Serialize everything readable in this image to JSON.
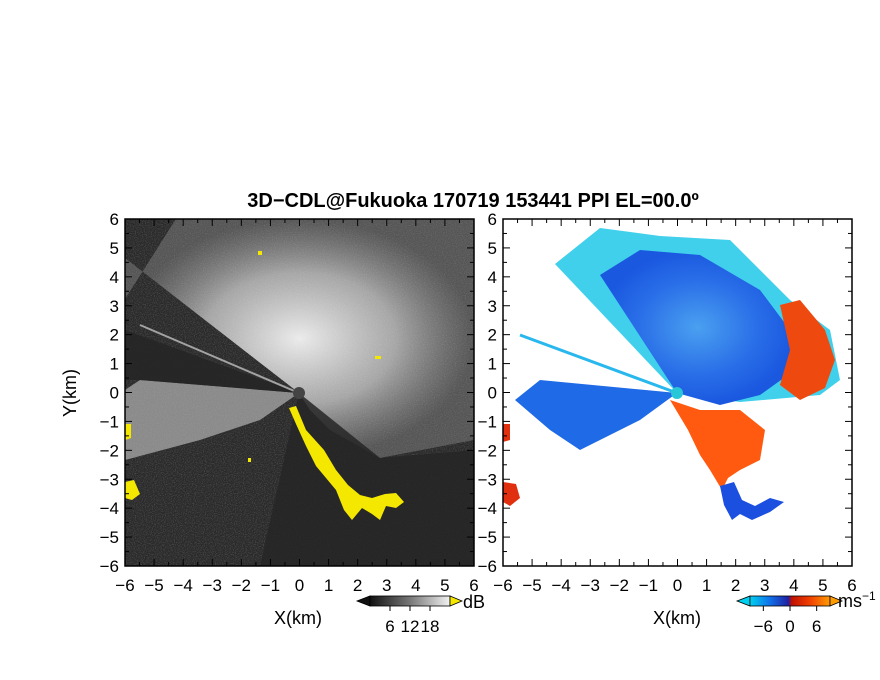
{
  "chart_data": [
    {
      "type": "heatmap",
      "title": "3D−CDL@Fukuoka 170719 153441 PPI EL=00.0º",
      "panel": "reflectivity",
      "xlabel": "X(km)",
      "ylabel": "Y(km)",
      "xlim": [
        -6,
        6
      ],
      "ylim": [
        -6,
        6
      ],
      "x_ticks": [
        "−6",
        "−5",
        "−4",
        "−3",
        "−2",
        "−1",
        "0",
        "1",
        "2",
        "3",
        "4",
        "5",
        "6"
      ],
      "y_ticks": [
        "6",
        "5",
        "4",
        "3",
        "2",
        "1",
        "0",
        "−1",
        "−2",
        "−3",
        "−4",
        "−5",
        "−6"
      ],
      "colorbar": {
        "unit": "dB",
        "ticks": [
          "6",
          "12",
          "18"
        ],
        "range": [
          0,
          24
        ]
      },
      "colors": {
        "background": "#1e1e1e",
        "max": "#ffffff",
        "flag": "#ffee00"
      }
    },
    {
      "type": "heatmap",
      "panel": "doppler_velocity",
      "xlabel": "X(km)",
      "xlim": [
        -6,
        6
      ],
      "ylim": [
        -6,
        6
      ],
      "x_ticks": [
        "−6",
        "−5",
        "−4",
        "−3",
        "−2",
        "−1",
        "0",
        "1",
        "2",
        "3",
        "4",
        "5",
        "6"
      ],
      "y_ticks": [
        "6",
        "5",
        "4",
        "3",
        "2",
        "1",
        "0",
        "−1",
        "−2",
        "−3",
        "−4",
        "−5",
        "−6"
      ],
      "colorbar": {
        "unit": "ms",
        "unit_exp": "−1",
        "ticks": [
          "−6",
          "0",
          "6"
        ],
        "range": [
          -9,
          9
        ]
      },
      "colors": {
        "negative_far": "#00c8e6",
        "negative": "#0a50e6",
        "zero": "#2020a0",
        "positive": "#e02000",
        "positive_far": "#ff8c00"
      }
    }
  ]
}
